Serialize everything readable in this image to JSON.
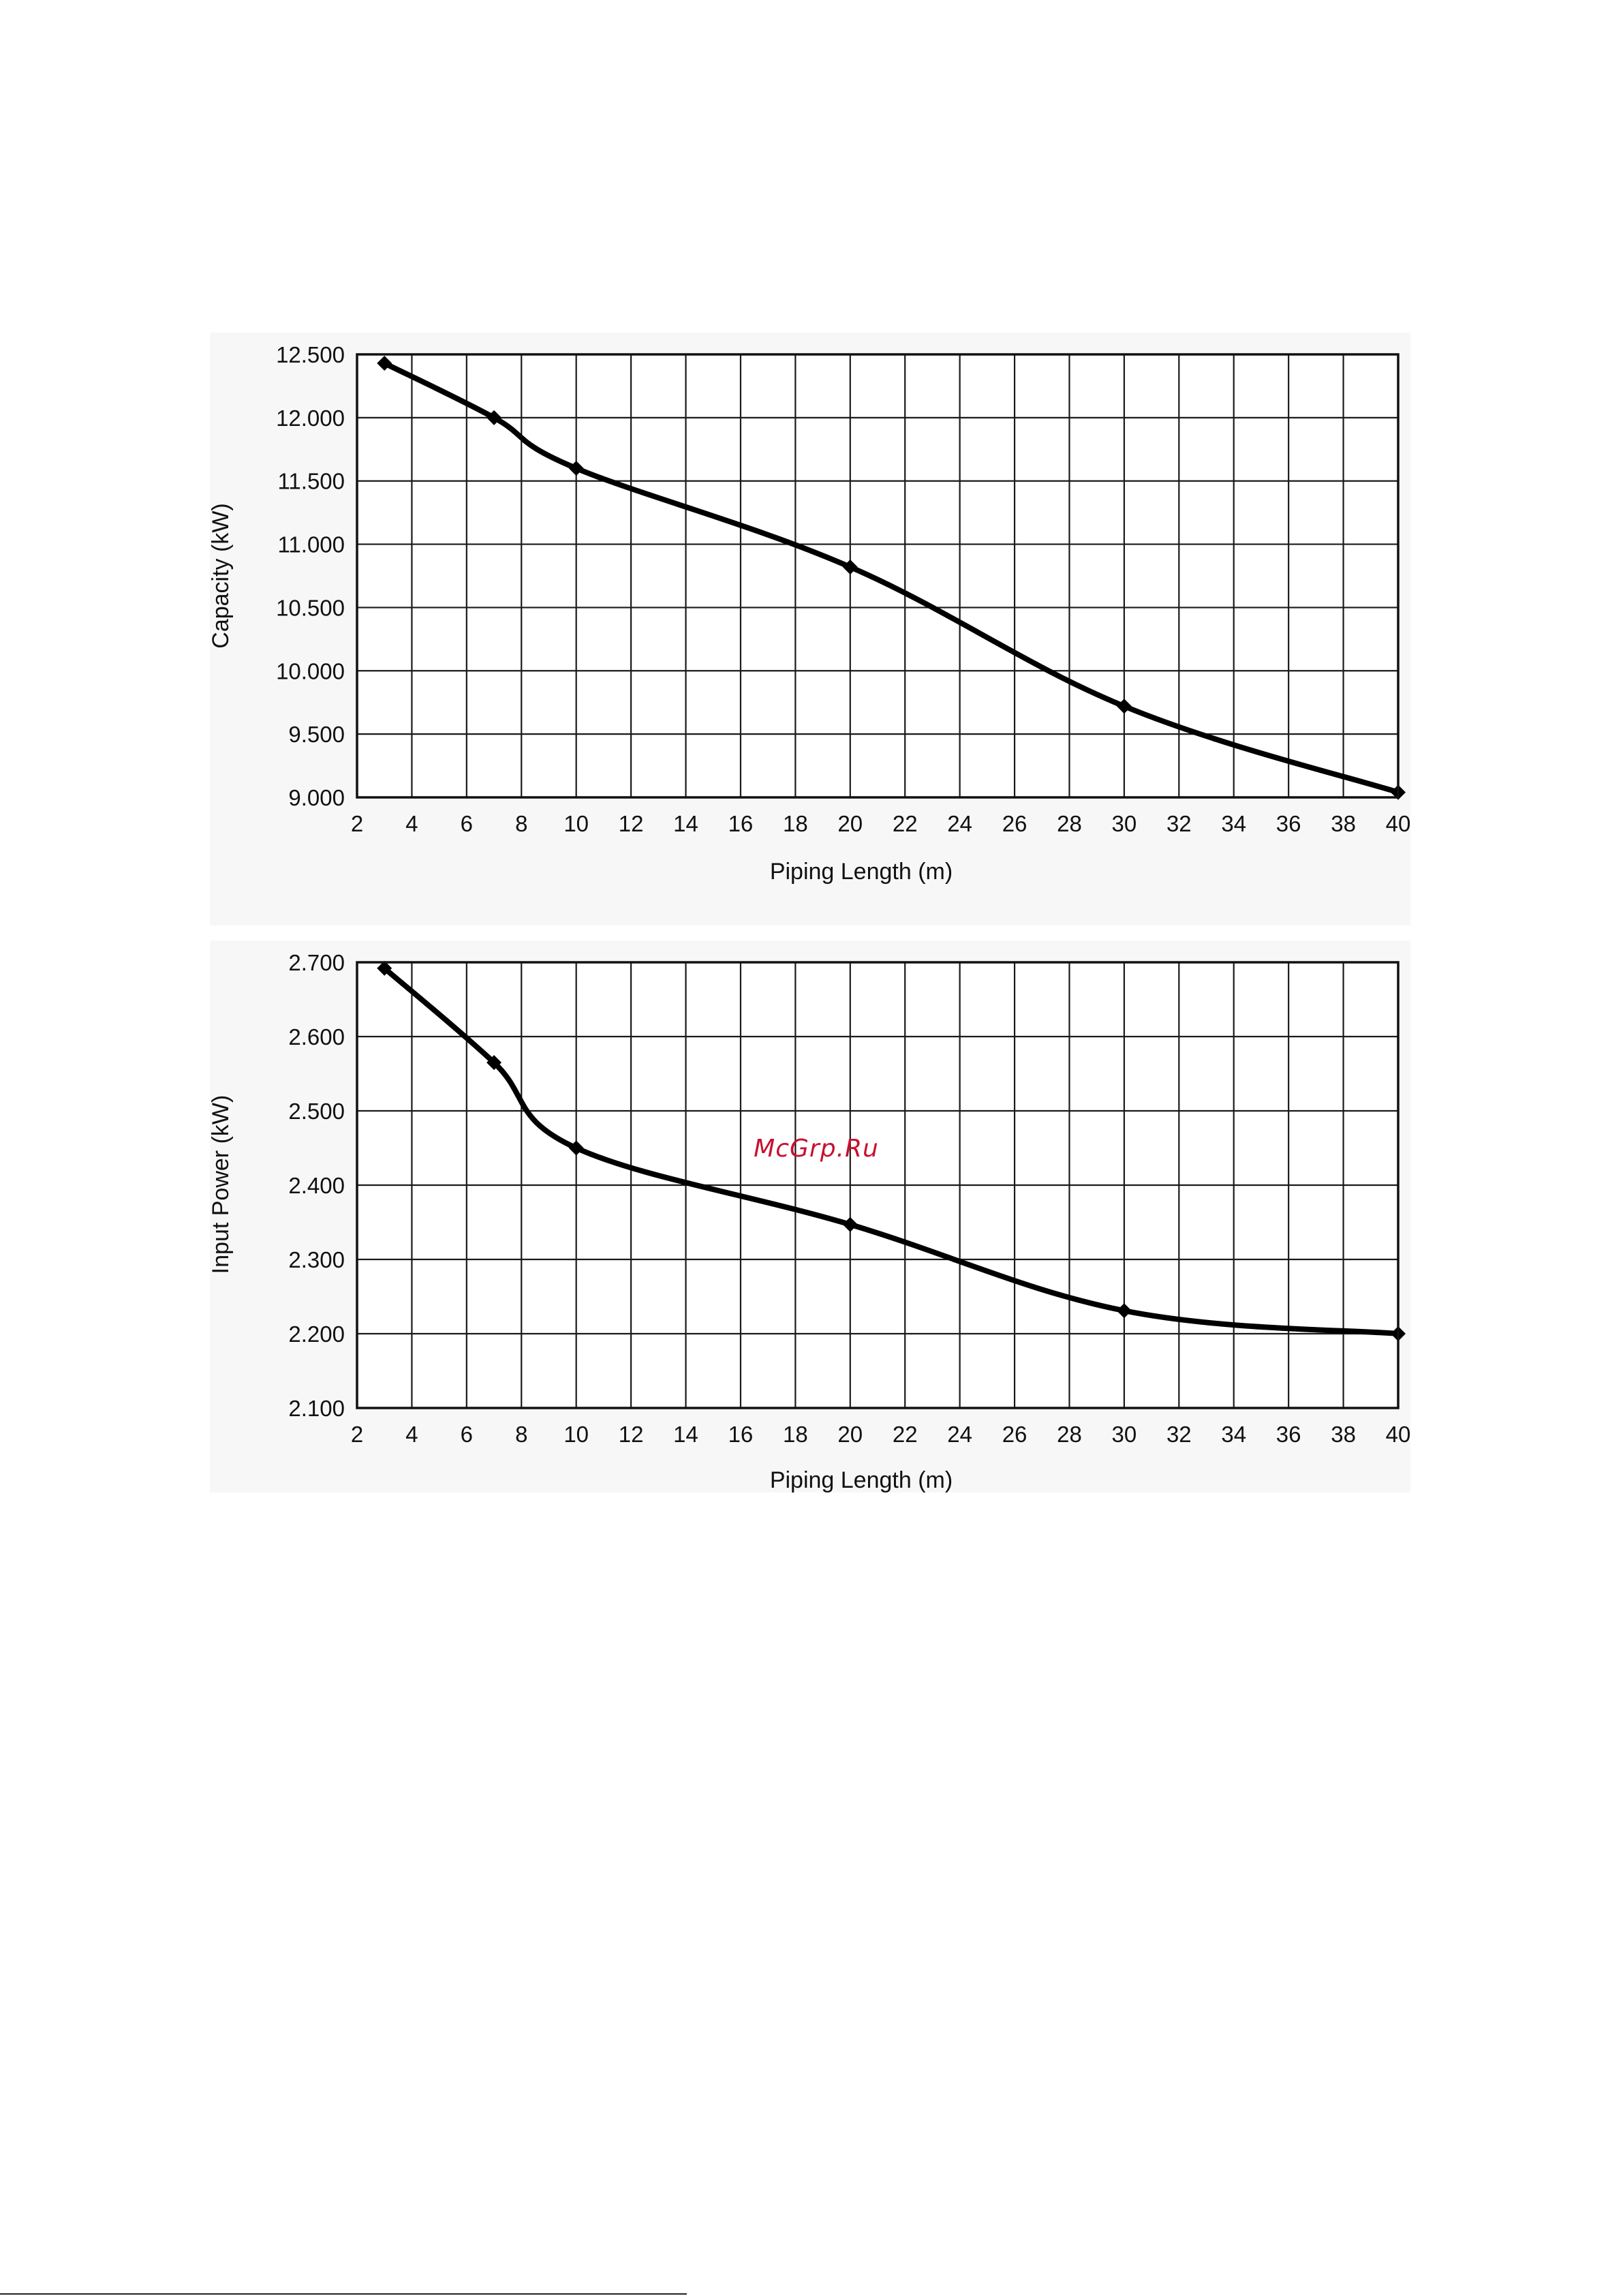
{
  "watermark": "McGrp.Ru",
  "chart_data": [
    {
      "type": "line",
      "xlabel": "Piping Length (m)",
      "ylabel": "Capacity (kW)",
      "xlim": [
        2,
        40
      ],
      "ylim": [
        9.0,
        12.5
      ],
      "x_ticks": [
        "2",
        "4",
        "6",
        "8",
        "10",
        "12",
        "14",
        "16",
        "18",
        "20",
        "22",
        "24",
        "26",
        "28",
        "30",
        "32",
        "34",
        "36",
        "38",
        "40"
      ],
      "y_ticks": [
        "12.500",
        "12.000",
        "11.500",
        "11.000",
        "10.500",
        "10.000",
        "9.500",
        "9.000"
      ],
      "y_tick_values": [
        12.5,
        12.0,
        11.5,
        11.0,
        10.5,
        10.0,
        9.5,
        9.0
      ],
      "grid": true,
      "series": [
        {
          "x": [
            3,
            7,
            10,
            20,
            30,
            40
          ],
          "y": [
            12.43,
            12.0,
            11.6,
            10.82,
            9.72,
            9.04
          ]
        }
      ]
    },
    {
      "type": "line",
      "xlabel": "Piping Length (m)",
      "ylabel": "Input Power (kW)",
      "xlim": [
        2,
        40
      ],
      "ylim": [
        2.1,
        2.7
      ],
      "x_ticks": [
        "2",
        "4",
        "6",
        "8",
        "10",
        "12",
        "14",
        "16",
        "18",
        "20",
        "22",
        "24",
        "26",
        "28",
        "30",
        "32",
        "34",
        "36",
        "38",
        "40"
      ],
      "y_ticks": [
        "2.700",
        "2.600",
        "2.500",
        "2.400",
        "2.300",
        "2.200",
        "2.100"
      ],
      "y_tick_values": [
        2.7,
        2.6,
        2.5,
        2.4,
        2.3,
        2.2,
        2.1
      ],
      "grid": true,
      "series": [
        {
          "x": [
            3,
            7,
            10,
            20,
            30,
            40
          ],
          "y": [
            2.692,
            2.565,
            2.45,
            2.347,
            2.231,
            2.2
          ]
        }
      ]
    }
  ]
}
